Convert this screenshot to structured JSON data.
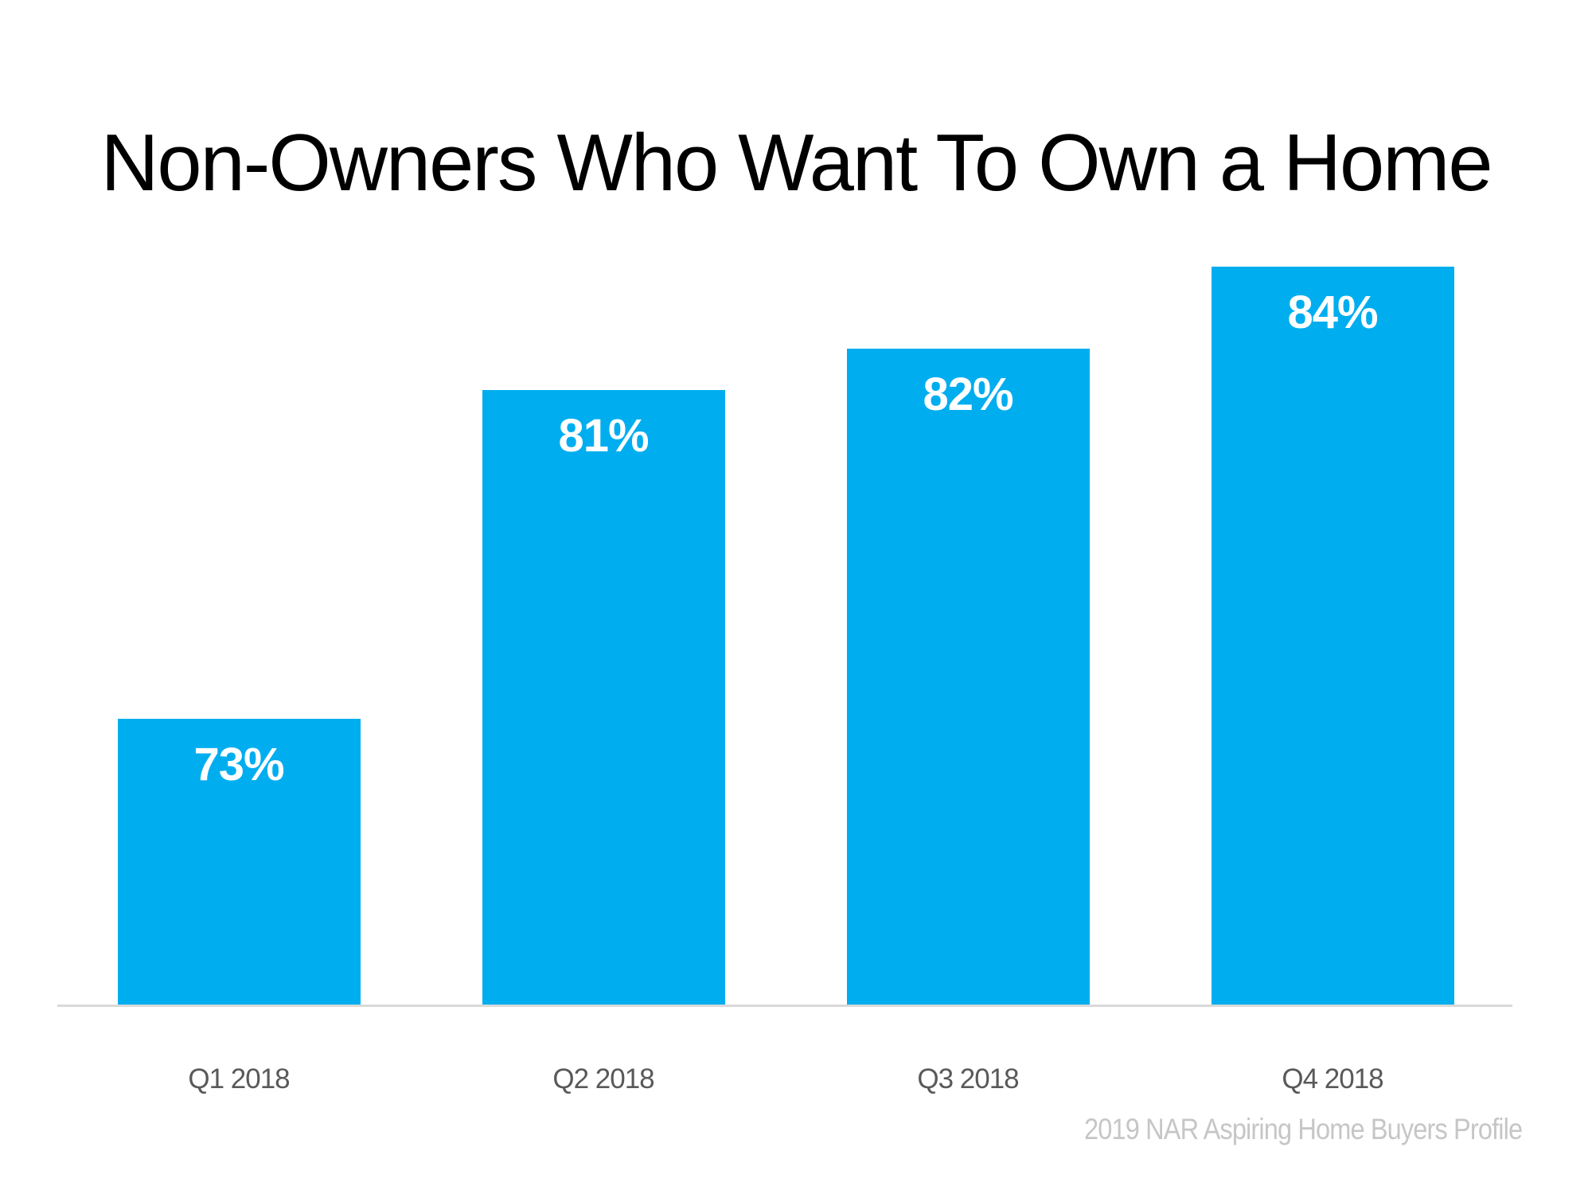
{
  "title": "Non-Owners Who Want To Own a Home",
  "source_note": "2019 NAR Aspiring Home Buyers Profile",
  "colors": {
    "bar": "#00AEEF",
    "data_label": "#FFFFFF",
    "title_text": "#000000",
    "category_label": "#595959",
    "axis_line": "#D9D9D9",
    "source_text": "#C6C6C6",
    "background": "#FFFFFF"
  },
  "chart_data": {
    "type": "bar",
    "title": "Non-Owners Who Want To Own a Home",
    "categories": [
      "Q1 2018",
      "Q2 2018",
      "Q3 2018",
      "Q4 2018"
    ],
    "values": [
      73,
      81,
      82,
      84
    ],
    "data_labels": [
      "73%",
      "81%",
      "82%",
      "84%"
    ],
    "unit": "%",
    "xlabel": "",
    "ylabel": "",
    "ylim": [
      66,
      85
    ],
    "y_axis_visible": false,
    "grid": false,
    "legend": false,
    "data_labels_position": "inside-top",
    "source": "2019 NAR Aspiring Home Buyers Profile"
  }
}
